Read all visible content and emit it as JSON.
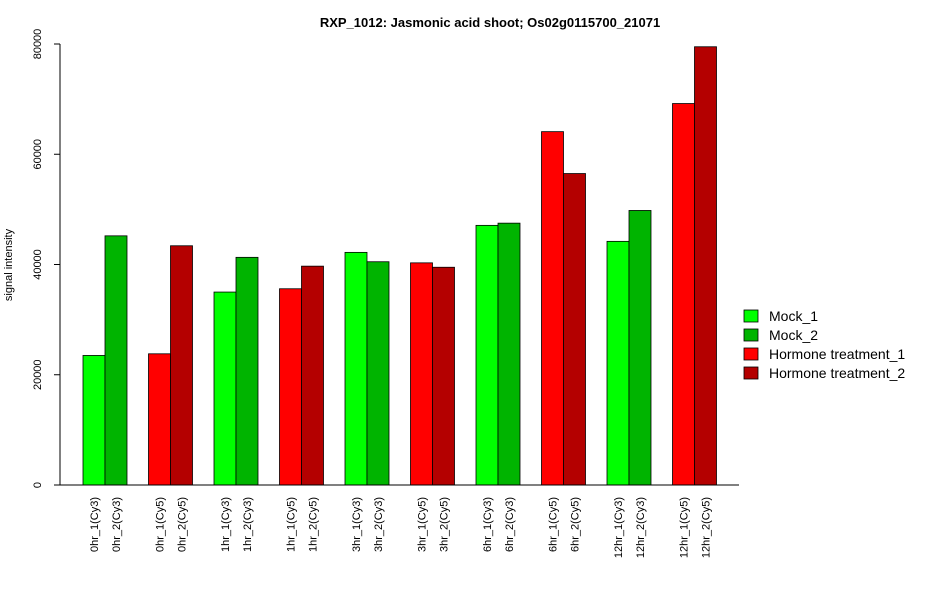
{
  "chart_data": {
    "type": "bar",
    "title": "RXP_1012: Jasmonic acid shoot; Os02g0115700_21071",
    "xlabel": "",
    "ylabel": "signal intensity",
    "ylim": [
      0,
      80000
    ],
    "yticks": [
      0,
      20000,
      40000,
      60000,
      80000
    ],
    "grid": false,
    "legend_position": "right",
    "categories": [
      "0hr_1(Cy3)",
      "0hr_2(Cy3)",
      "0hr_1(Cy5)",
      "0hr_2(Cy5)",
      "1hr_1(Cy3)",
      "1hr_2(Cy3)",
      "1hr_1(Cy5)",
      "1hr_2(Cy5)",
      "3hr_1(Cy3)",
      "3hr_2(Cy3)",
      "3hr_1(Cy5)",
      "3hr_2(Cy5)",
      "6hr_1(Cy3)",
      "6hr_2(Cy3)",
      "6hr_1(Cy5)",
      "6hr_2(Cy5)",
      "12hr_1(Cy3)",
      "12hr_2(Cy3)",
      "12hr_1(Cy5)",
      "12hr_2(Cy5)"
    ],
    "values": [
      23500,
      45200,
      23800,
      43400,
      35000,
      41300,
      35600,
      39700,
      42200,
      40500,
      40300,
      39500,
      47100,
      47500,
      64100,
      56500,
      44200,
      49800,
      69200,
      79500
    ],
    "bar_series": [
      "Mock_1",
      "Mock_2",
      "Hormone treatment_1",
      "Hormone treatment_2",
      "Mock_1",
      "Mock_2",
      "Hormone treatment_1",
      "Hormone treatment_2",
      "Mock_1",
      "Mock_2",
      "Hormone treatment_1",
      "Hormone treatment_2",
      "Mock_1",
      "Mock_2",
      "Hormone treatment_1",
      "Hormone treatment_2",
      "Mock_1",
      "Mock_2",
      "Hormone treatment_1",
      "Hormone treatment_2"
    ],
    "series": [
      {
        "name": "Mock_1",
        "color": "#00ff00"
      },
      {
        "name": "Mock_2",
        "color": "#00b400"
      },
      {
        "name": "Hormone treatment_1",
        "color": "#ff0000"
      },
      {
        "name": "Hormone treatment_2",
        "color": "#b40000"
      }
    ]
  }
}
